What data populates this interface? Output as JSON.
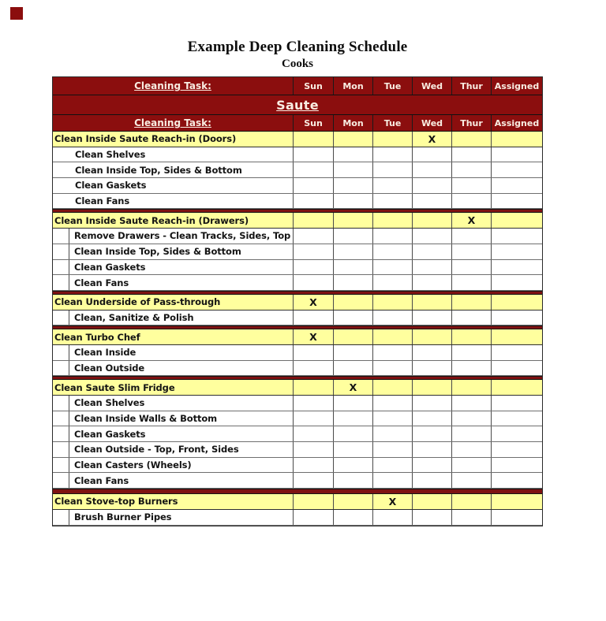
{
  "page": {
    "title": "Example Deep Cleaning Schedule",
    "subtitle": "Cooks"
  },
  "table": {
    "header": {
      "task_label": "Cleaning Task:",
      "days": [
        "Sun",
        "Mon",
        "Tue",
        "Wed",
        "Thur"
      ],
      "assigned_label": "Assigned"
    },
    "section_title": "Saute",
    "mark_symbol": "X",
    "rows": [
      {
        "type": "main",
        "task": "Clean Inside Saute Reach-in (Doors)",
        "mark_day": "Wed"
      },
      {
        "type": "sub",
        "task": "Clean Shelves",
        "divider": false
      },
      {
        "type": "sub",
        "task": "Clean Inside Top, Sides & Bottom",
        "divider": false
      },
      {
        "type": "sub",
        "task": "Clean Gaskets",
        "divider": false
      },
      {
        "type": "sub",
        "task": "Clean Fans",
        "divider": false
      },
      {
        "type": "separator"
      },
      {
        "type": "main",
        "task": "Clean Inside Saute Reach-in (Drawers)",
        "mark_day": "Thur"
      },
      {
        "type": "sub",
        "task": "Remove Drawers - Clean Tracks, Sides, Top",
        "divider": true
      },
      {
        "type": "sub",
        "task": "Clean Inside Top, Sides & Bottom",
        "divider": true
      },
      {
        "type": "sub",
        "task": "Clean Gaskets",
        "divider": true
      },
      {
        "type": "sub",
        "task": "Clean Fans",
        "divider": true
      },
      {
        "type": "separator"
      },
      {
        "type": "main",
        "task": "Clean Underside of Pass-through",
        "mark_day": "Sun"
      },
      {
        "type": "sub",
        "task": "Clean, Sanitize & Polish",
        "divider": true
      },
      {
        "type": "separator"
      },
      {
        "type": "main",
        "task": "Clean Turbo Chef",
        "mark_day": "Sun"
      },
      {
        "type": "sub",
        "task": "Clean Inside",
        "divider": true
      },
      {
        "type": "sub",
        "task": "Clean Outside",
        "divider": true
      },
      {
        "type": "separator"
      },
      {
        "type": "main",
        "task": "Clean Saute Slim Fridge",
        "mark_day": "Mon"
      },
      {
        "type": "sub",
        "task": "Clean Shelves",
        "divider": true
      },
      {
        "type": "sub",
        "task": "Clean Inside Walls & Bottom",
        "divider": true
      },
      {
        "type": "sub",
        "task": "Clean Gaskets",
        "divider": true
      },
      {
        "type": "sub",
        "task": "Clean Outside - Top, Front, Sides",
        "divider": true
      },
      {
        "type": "sub",
        "task": "Clean Casters (Wheels)",
        "divider": true
      },
      {
        "type": "sub",
        "task": "Clean Fans",
        "divider": true
      },
      {
        "type": "separator",
        "thick": true
      },
      {
        "type": "main",
        "task": "Clean Stove-top Burners",
        "mark_day": "Tue"
      },
      {
        "type": "sub",
        "task": "Brush Burner Pipes",
        "divider": true
      }
    ]
  },
  "colors": {
    "header_bg": "#8B0E0E",
    "separator_bg": "#7E1212",
    "row_highlight": "#FFFF9E",
    "grid_line": "#4a4a4a",
    "header_text": "#F9EDE2",
    "body_text": "#141414"
  }
}
